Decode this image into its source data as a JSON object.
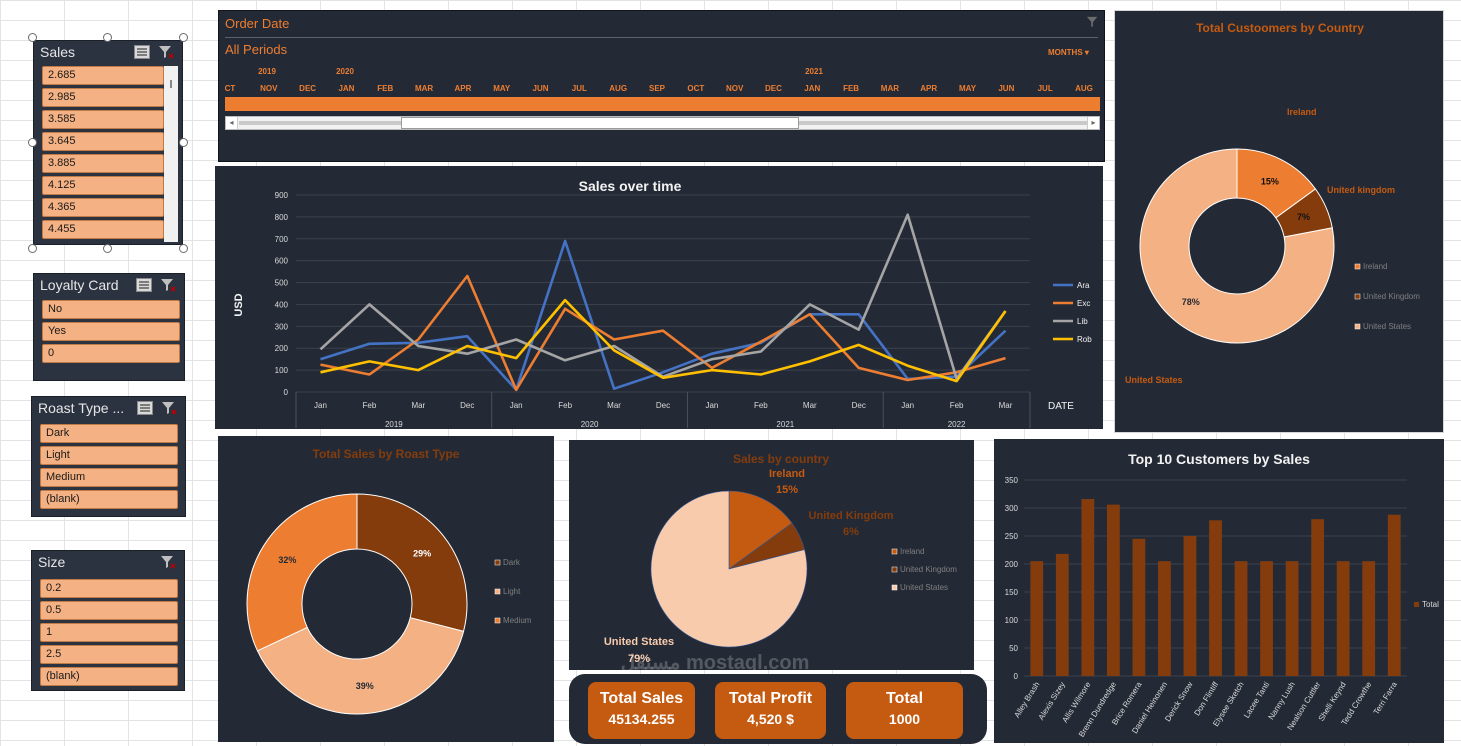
{
  "slicers": {
    "sales": {
      "title": "Sales",
      "items": [
        "2.685",
        "2.985",
        "3.585",
        "3.645",
        "3.885",
        "4.125",
        "4.365",
        "4.455"
      ]
    },
    "loyalty": {
      "title": "Loyalty Card",
      "items": [
        "No",
        "Yes",
        "0"
      ]
    },
    "roast": {
      "title": "Roast Type ...",
      "items": [
        "Dark",
        "Light",
        "Medium",
        "(blank)"
      ]
    },
    "size": {
      "title": "Size",
      "items": [
        "0.2",
        "0.5",
        "1",
        "2.5",
        "(blank)"
      ]
    }
  },
  "timeline": {
    "title": "Order Date",
    "period": "All Periods",
    "unit_selector": "MONTHS",
    "years": [
      "2019",
      "2020",
      "2021"
    ],
    "months": [
      "CT",
      "NOV",
      "DEC",
      "JAN",
      "FEB",
      "MAR",
      "APR",
      "MAY",
      "JUN",
      "JUL",
      "AUG",
      "SEP",
      "OCT",
      "NOV",
      "DEC",
      "JAN",
      "FEB",
      "MAR",
      "APR",
      "MAY",
      "JUN",
      "JUL",
      "AUG"
    ]
  },
  "kpis": {
    "total_sales_label": "Total Sales",
    "total_sales_value": "45134.255",
    "total_profit_label": "Total Profit",
    "total_profit_value": "4,520 $",
    "total_label": "Total",
    "total_value": "1000"
  },
  "watermark": "مستقل mostaql.com",
  "colors": {
    "accent": "#ed7d31",
    "panel": "#242a35",
    "slicer_item": "#f4b183",
    "kpi": "#c55a11"
  },
  "chart_data": [
    {
      "id": "sales_over_time",
      "type": "line",
      "title": "Sales over time",
      "ylabel": "USD",
      "xlabel": "DATE",
      "ylim": [
        0,
        900
      ],
      "yticks": [
        0,
        100,
        200,
        300,
        400,
        500,
        600,
        700,
        800,
        900
      ],
      "categories": [
        "Jan",
        "Feb",
        "Mar",
        "Dec",
        "Jan",
        "Feb",
        "Mar",
        "Dec",
        "Jan",
        "Feb",
        "Mar",
        "Dec",
        "Jan",
        "Feb",
        "Mar"
      ],
      "groups": [
        {
          "label": "2019",
          "count": 4
        },
        {
          "label": "2020",
          "count": 4
        },
        {
          "label": "2021",
          "count": 4
        },
        {
          "label": "2022",
          "count": 3
        }
      ],
      "legend_position": "right",
      "series": [
        {
          "name": "Ara",
          "color": "#4472c4",
          "values": [
            150,
            220,
            225,
            255,
            10,
            690,
            15,
            90,
            175,
            225,
            355,
            355,
            60,
            70,
            280
          ]
        },
        {
          "name": "Exc",
          "color": "#ed7d31",
          "values": [
            125,
            80,
            240,
            530,
            10,
            380,
            240,
            280,
            110,
            230,
            355,
            110,
            55,
            90,
            155
          ]
        },
        {
          "name": "Lib",
          "color": "#a5a5a5",
          "values": [
            195,
            400,
            210,
            175,
            240,
            145,
            210,
            70,
            150,
            185,
            400,
            285,
            810,
            60,
            370
          ]
        },
        {
          "name": "Rob",
          "color": "#ffc000",
          "values": [
            90,
            140,
            100,
            210,
            155,
            420,
            190,
            65,
            100,
            80,
            140,
            215,
            120,
            50,
            370
          ]
        }
      ]
    },
    {
      "id": "customers_by_country",
      "type": "pie",
      "title": "Total Custoomers by Country",
      "legend_position": "right",
      "slices": [
        {
          "label": "Ireland",
          "value": 15,
          "value_label": "15%",
          "color": "#ed7d31"
        },
        {
          "label": "United kingdom",
          "value": 7,
          "value_label": "7%",
          "color": "#843c0c"
        },
        {
          "label": "United States",
          "value": 78,
          "value_label": "78%",
          "color": "#f4b183"
        }
      ],
      "legend": [
        "Ireland",
        "United Kingdom",
        "United States"
      ]
    },
    {
      "id": "sales_by_roast",
      "type": "pie",
      "title": "Total Sales by Roast Type",
      "legend_position": "right",
      "slices": [
        {
          "label": "Dark",
          "value": 29,
          "value_label": "29%",
          "color": "#843c0c"
        },
        {
          "label": "Light",
          "value": 39,
          "value_label": "39%",
          "color": "#f4b183"
        },
        {
          "label": "Medium",
          "value": 32,
          "value_label": "32%",
          "color": "#ed7d31"
        }
      ],
      "legend": [
        "Dark",
        "Light",
        "Medium"
      ]
    },
    {
      "id": "sales_by_country",
      "type": "pie",
      "title": "Sales by country",
      "legend_position": "right",
      "slices": [
        {
          "label": "Ireland",
          "value": 15,
          "value_label": "15%",
          "color": "#c55a11"
        },
        {
          "label": "United Kingdom",
          "value": 6,
          "value_label": "6%",
          "color": "#843c0c"
        },
        {
          "label": "United States",
          "value": 79,
          "value_label": "79%",
          "color": "#f8cbad"
        }
      ],
      "legend": [
        "Ireland",
        "United Kingdom",
        "United States"
      ]
    },
    {
      "id": "top10_customers",
      "type": "bar",
      "title": "Top 10 Customers by Sales",
      "ylim": [
        0,
        350
      ],
      "yticks": [
        0,
        50,
        100,
        150,
        200,
        250,
        300,
        350
      ],
      "legend_position": "right",
      "series": [
        {
          "name": "Total",
          "color": "#843c0c",
          "values": [
            205,
            218,
            316,
            306,
            245,
            205,
            250,
            278,
            205,
            205,
            205,
            280,
            205,
            205,
            288
          ]
        }
      ],
      "categories": [
        "Alley Brash",
        "Alexis Sizey",
        "Allis Wilmore",
        "Brenn Dundredge",
        "Brice Romera",
        "Daniel Heinonen",
        "Derick Snow",
        "Don Flintiff",
        "Elysee Sketch",
        "Lacee Tanti",
        "Nanny Lush",
        "Nealson Cuttler",
        "Shelli Keynd",
        "Tedd Crowthe",
        "Terri Farra"
      ]
    }
  ]
}
